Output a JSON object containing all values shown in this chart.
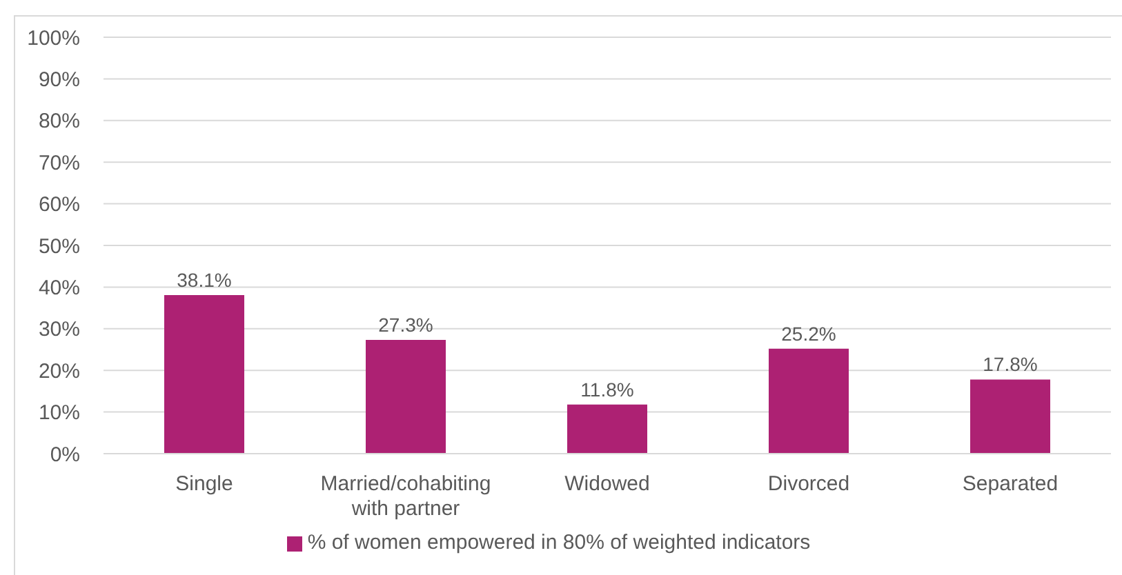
{
  "chart_data": {
    "type": "bar",
    "categories": [
      "Single",
      "Married/cohabiting with partner",
      "Widowed",
      "Divorced",
      "Separated"
    ],
    "series": [
      {
        "name": "% of women empowered in 80% of weighted indicators",
        "color": "#ad2173",
        "values": [
          38.1,
          27.3,
          11.8,
          25.2,
          17.8
        ],
        "value_labels": [
          "38.1%",
          "27.3%",
          "11.8%",
          "25.2%",
          "17.8%"
        ]
      }
    ],
    "ylim": [
      0,
      100
    ],
    "yticks": [
      {
        "value": 0,
        "label": "0%"
      },
      {
        "value": 10,
        "label": "10%"
      },
      {
        "value": 20,
        "label": "20%"
      },
      {
        "value": 30,
        "label": "30%"
      },
      {
        "value": 40,
        "label": "40%"
      },
      {
        "value": 50,
        "label": "50%"
      },
      {
        "value": 60,
        "label": "60%"
      },
      {
        "value": 70,
        "label": "70%"
      },
      {
        "value": 80,
        "label": "80%"
      },
      {
        "value": 90,
        "label": "90%"
      },
      {
        "value": 100,
        "label": "100%"
      }
    ],
    "grid": "y",
    "legend": "bottom"
  }
}
